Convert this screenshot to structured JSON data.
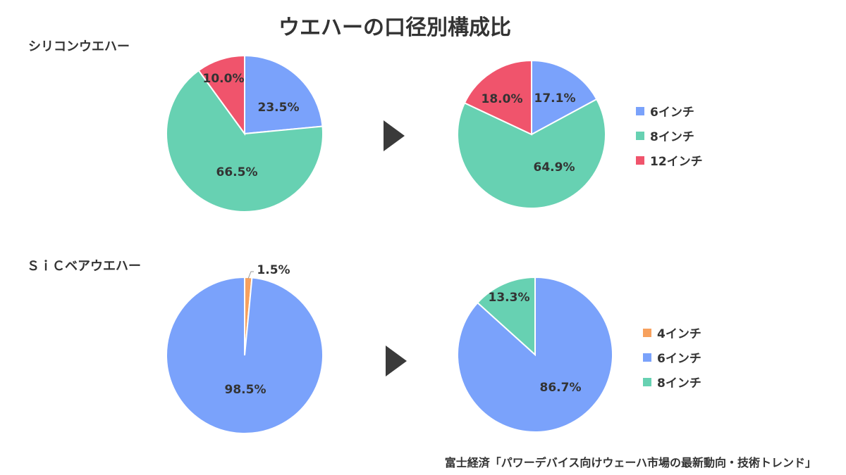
{
  "title": "ウエハーの口径別構成比",
  "source": "富士経済「パワーデバイス向けウェーハ市場の最新動向・技術トレンド」",
  "sections": [
    {
      "label": "シリコンウエハー",
      "legend": [
        {
          "name": "6インチ",
          "color": "#7aa2fb"
        },
        {
          "name": "8インチ",
          "color": "#67d1b2"
        },
        {
          "name": "12インチ",
          "color": "#f0546c"
        }
      ]
    },
    {
      "label": "ＳｉＣベアウエハー",
      "legend": [
        {
          "name": "4インチ",
          "color": "#f7a15e"
        },
        {
          "name": "6インチ",
          "color": "#7aa2fb"
        },
        {
          "name": "8インチ",
          "color": "#67d1b2"
        }
      ]
    }
  ],
  "chart_data": [
    {
      "type": "pie",
      "group": "シリコンウエハー",
      "categories": [
        "6インチ",
        "8インチ",
        "12インチ"
      ],
      "values": [
        23.5,
        66.5,
        10.0
      ],
      "labels": [
        "23.5%",
        "66.5%",
        "10.0%"
      ],
      "colors": [
        "#7aa2fb",
        "#67d1b2",
        "#f0546c"
      ]
    },
    {
      "type": "pie",
      "group": "シリコンウエハー",
      "categories": [
        "6インチ",
        "8インチ",
        "12インチ"
      ],
      "values": [
        17.1,
        64.9,
        18.0
      ],
      "labels": [
        "17.1%",
        "64.9%",
        "18.0%"
      ],
      "colors": [
        "#7aa2fb",
        "#67d1b2",
        "#f0546c"
      ]
    },
    {
      "type": "pie",
      "group": "ＳｉＣベアウエハー",
      "categories": [
        "4インチ",
        "6インチ"
      ],
      "values": [
        1.5,
        98.5
      ],
      "labels": [
        "1.5%",
        "98.5%"
      ],
      "colors": [
        "#f7a15e",
        "#7aa2fb"
      ]
    },
    {
      "type": "pie",
      "group": "ＳｉＣベアウエハー",
      "categories": [
        "6インチ",
        "8インチ"
      ],
      "values": [
        86.7,
        13.3
      ],
      "labels": [
        "86.7%",
        "13.3%"
      ],
      "colors": [
        "#7aa2fb",
        "#67d1b2"
      ]
    }
  ]
}
